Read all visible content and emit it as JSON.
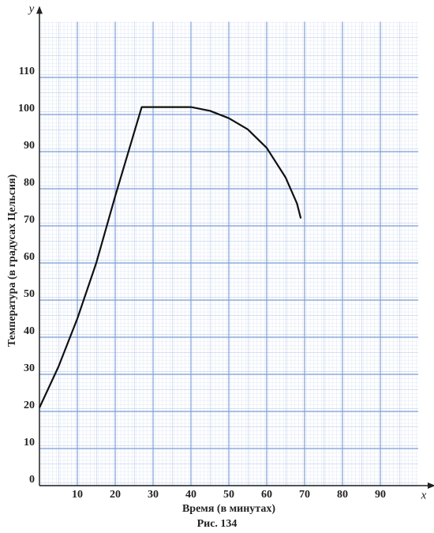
{
  "chart_data": {
    "type": "line",
    "caption": "Рис. 134",
    "xlabel": "Время (в минутах)",
    "ylabel": "Температура (в градусах Цельсия)",
    "x_axis_name": "x",
    "y_axis_name": "y",
    "x": [
      0,
      5,
      10,
      15,
      20,
      27,
      40,
      45,
      50,
      55,
      60,
      65,
      68,
      69
    ],
    "values": [
      21,
      32,
      45,
      60,
      78,
      102,
      102,
      101,
      99,
      96,
      91,
      83,
      76,
      72
    ],
    "color": "#111111",
    "grid_color": "#7f9fd6",
    "xlim": [
      0,
      100
    ],
    "ylim": [
      0,
      125
    ],
    "xticks": [
      10,
      20,
      30,
      40,
      50,
      60,
      70,
      80,
      90
    ],
    "yticks": [
      0,
      10,
      20,
      30,
      40,
      50,
      60,
      70,
      80,
      90,
      100,
      110
    ],
    "grid": true
  }
}
